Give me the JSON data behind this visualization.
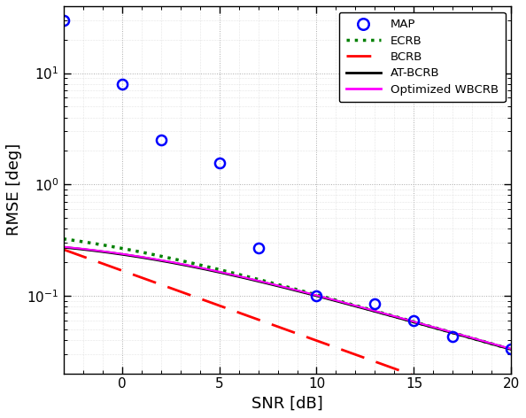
{
  "map_snr": [
    -3,
    0,
    2,
    5,
    7,
    10,
    13,
    15,
    17,
    20
  ],
  "map_rmse": [
    30,
    8.0,
    2.5,
    1.55,
    0.27,
    0.1,
    0.085,
    0.06,
    0.043,
    0.033
  ],
  "snr_start": -3,
  "snr_end": 20,
  "xlim": [
    -3,
    20
  ],
  "ylim": [
    0.02,
    40
  ],
  "xticks": [
    0,
    5,
    10,
    15,
    20
  ],
  "xlabel": "SNR [dB]",
  "ylabel": "RMSE [deg]",
  "ecrb_prior": 0.45,
  "ecrb_k": 9.18,
  "atbcrb_prior": 0.335,
  "atbcrb_k": 9.18,
  "bcrb_val_at_neg3": 0.26,
  "bcrb_slope": -0.063,
  "map_color": "#0000FF",
  "ecrb_color": "#008000",
  "bcrb_color": "#FF0000",
  "atbcrb_color": "#000000",
  "wbcrb_color": "#FF00FF",
  "legend_labels": [
    "MAP",
    "ECRB",
    "BCRB",
    "AT-BCRB",
    "Optimized WBCRB"
  ],
  "figsize": [
    5.94,
    4.72
  ],
  "dpi": 100
}
